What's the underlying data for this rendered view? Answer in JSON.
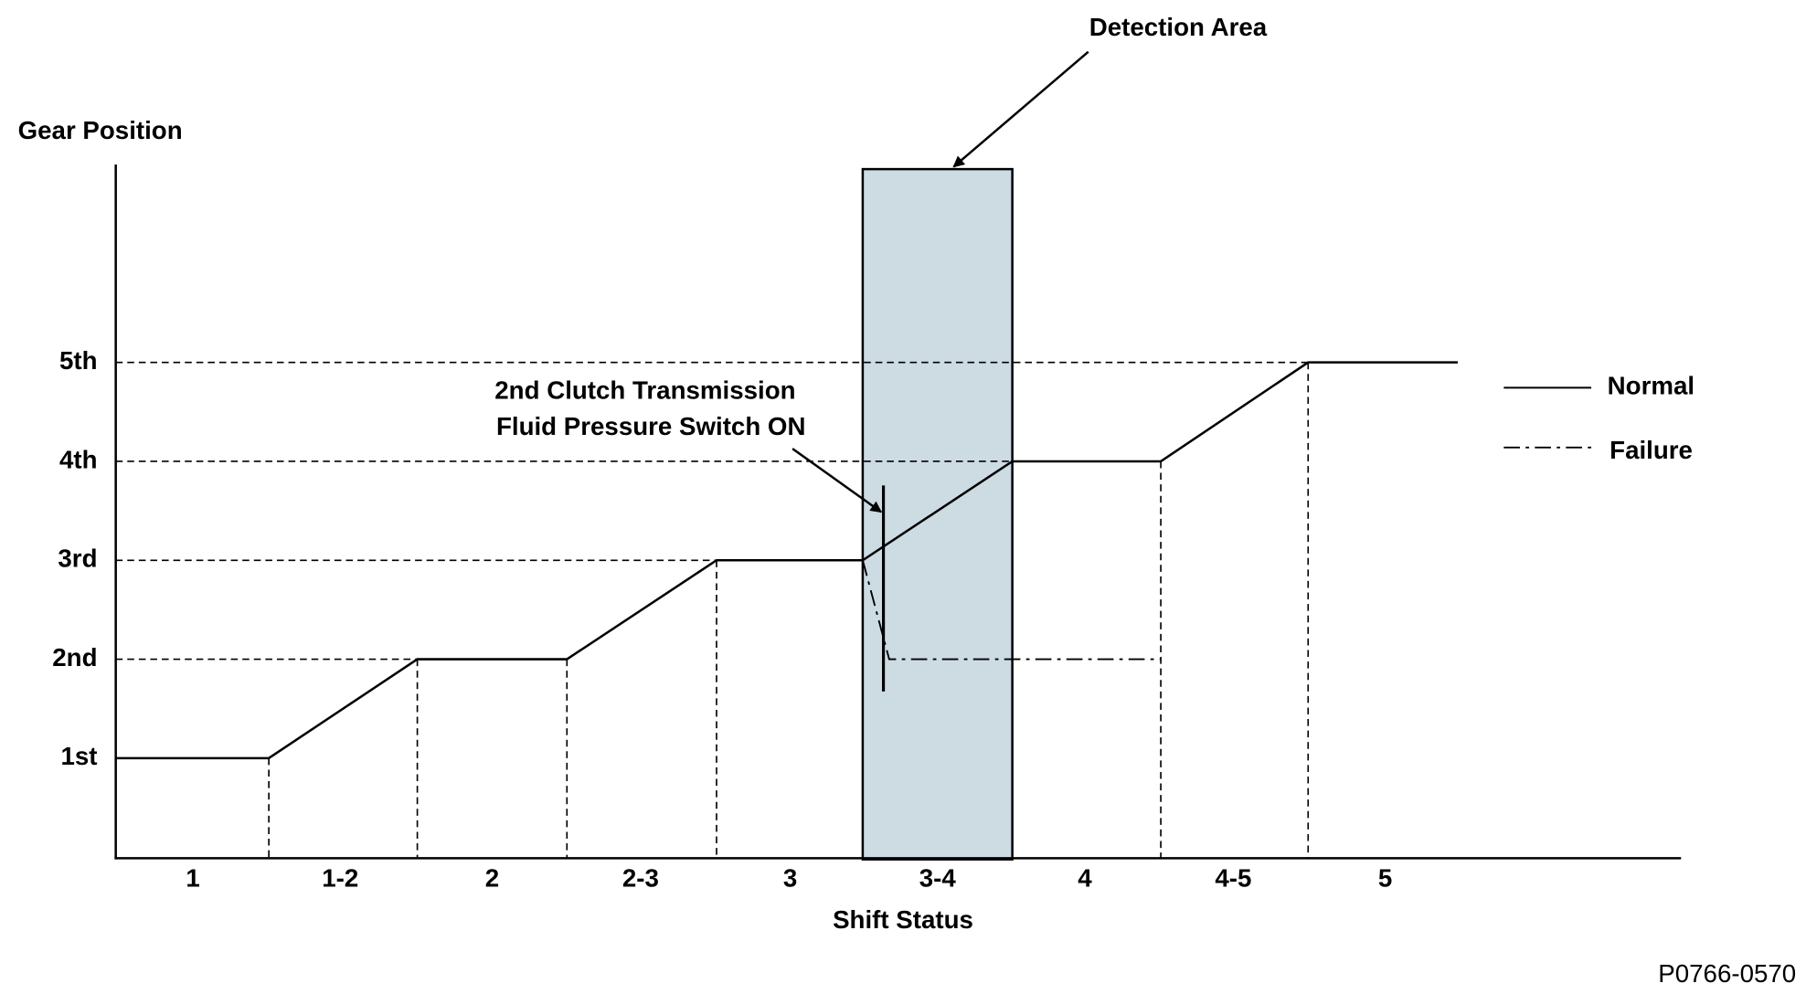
{
  "y_axis": {
    "title": "Gear Position",
    "labels": [
      "1st",
      "2nd",
      "3rd",
      "4th",
      "5th"
    ]
  },
  "x_axis": {
    "title": "Shift Status",
    "labels": [
      "1",
      "1-2",
      "2",
      "2-3",
      "3",
      "3-4",
      "4",
      "4-5",
      "5"
    ]
  },
  "annotations": {
    "detection_area": "Detection Area",
    "switch": [
      "2nd Clutch Transmission",
      "Fluid Pressure Switch ON"
    ]
  },
  "legend": [
    {
      "label": "Normal"
    },
    {
      "label": "Failure"
    }
  ],
  "figure_id": "P0766-0570"
}
